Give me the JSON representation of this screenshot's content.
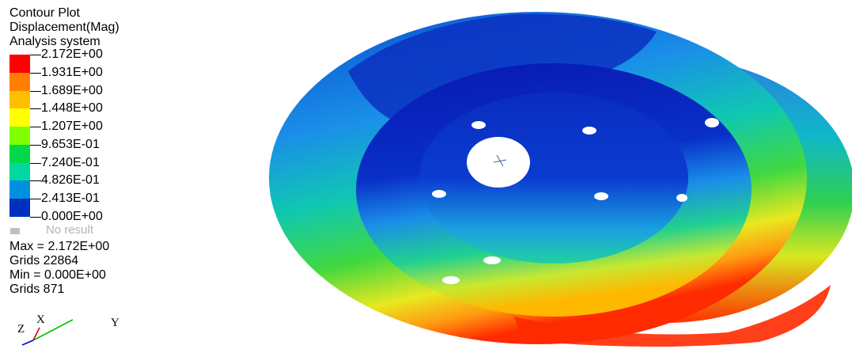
{
  "legend": {
    "title": "Contour Plot",
    "subtitle": "Displacement(Mag)",
    "system": "Analysis system",
    "levels": [
      "2.172E+00",
      "1.931E+00",
      "1.689E+00",
      "1.448E+00",
      "1.207E+00",
      "9.653E-01",
      "7.240E-01",
      "4.826E-01",
      "2.413E-01",
      "0.000E+00"
    ],
    "band_colors": [
      "#ff0000",
      "#ff7f00",
      "#ffbf00",
      "#ffff00",
      "#7fff00",
      "#00d84a",
      "#00d8a0",
      "#0090e0",
      "#0030c0"
    ],
    "no_result": "No result"
  },
  "stats": {
    "max": "Max = 2.172E+00",
    "max_grids": "Grids 22864",
    "min": "Min = 0.000E+00",
    "min_grids": "Grids 871"
  },
  "triad": {
    "x": "X",
    "y": "Y",
    "z": "Z"
  }
}
